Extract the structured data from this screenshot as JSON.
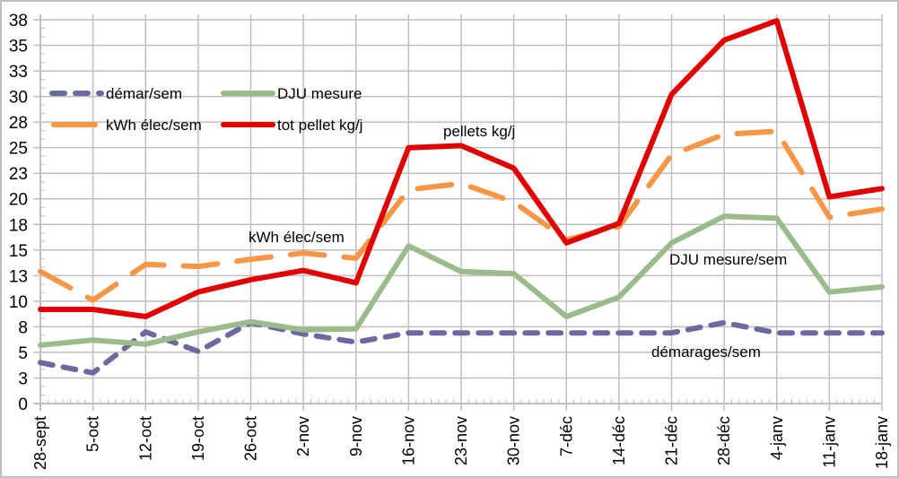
{
  "chart_data": {
    "type": "line",
    "title": "",
    "xlabel": "",
    "ylabel": "",
    "ylim": [
      0,
      37.5
    ],
    "grid": true,
    "y_ticks": [
      0,
      2.5,
      5,
      7.5,
      10,
      12.5,
      15,
      17.5,
      20,
      22.5,
      25,
      27.5,
      30,
      32.5,
      35,
      37.5
    ],
    "y_tick_labels": [
      "0",
      "3",
      "5",
      "8",
      "10",
      "13",
      "15",
      "18",
      "20",
      "23",
      "25",
      "28",
      "30",
      "33",
      "35",
      "38"
    ],
    "categories": [
      "28-sept",
      "5-oct",
      "12-oct",
      "19-oct",
      "26-oct",
      "2-nov",
      "9-nov",
      "16-nov",
      "23-nov",
      "30-nov",
      "7-déc",
      "14-déc",
      "21-déc",
      "28-déc",
      "4-janv",
      "11-janv",
      "18-janv"
    ],
    "series": [
      {
        "name": "démar/sem",
        "color": "#6a6aa0",
        "style": "dashed",
        "values": [
          4.0,
          3.0,
          7.0,
          5.1,
          7.9,
          6.8,
          6.0,
          6.9,
          6.9,
          6.9,
          6.9,
          6.9,
          6.9,
          7.9,
          6.9,
          6.9,
          6.9
        ]
      },
      {
        "name": "DJU mesure",
        "color": "#9bbb8c",
        "style": "solid",
        "values": [
          5.7,
          6.2,
          5.8,
          7.0,
          8.0,
          7.2,
          7.3,
          15.4,
          12.9,
          12.7,
          8.5,
          10.4,
          15.7,
          18.3,
          18.1,
          10.9,
          11.4
        ]
      },
      {
        "name": "kWh élec/sem",
        "color": "#f79646",
        "style": "dashed",
        "values": [
          12.9,
          10.1,
          13.6,
          13.4,
          14.1,
          14.7,
          14.2,
          20.9,
          21.5,
          19.7,
          16.0,
          17.3,
          24.3,
          26.3,
          26.6,
          18.2,
          19.0
        ]
      },
      {
        "name": "tot pellet kg/j",
        "color": "#e00000",
        "style": "solid",
        "values": [
          9.2,
          9.2,
          8.5,
          10.9,
          12.1,
          13.0,
          11.8,
          25.0,
          25.2,
          23.0,
          15.7,
          17.6,
          30.2,
          35.5,
          37.4,
          20.2,
          21.0
        ]
      }
    ],
    "legend": {
      "placement": "top-left",
      "entries": [
        "démar/sem",
        "DJU mesure",
        "kWh élec/sem",
        "tot pellet kg/j"
      ]
    },
    "annotations": [
      {
        "text": "pellets kg/j",
        "near": "23-nov",
        "value": 27.5
      },
      {
        "text": "kWh élec/sem",
        "near": "2-nov",
        "value": 16
      },
      {
        "text": "DJU mesure/sem",
        "near": "28-déc",
        "value": 14
      },
      {
        "text": "démarages/sem",
        "near": "28-déc",
        "value": 5
      }
    ]
  }
}
